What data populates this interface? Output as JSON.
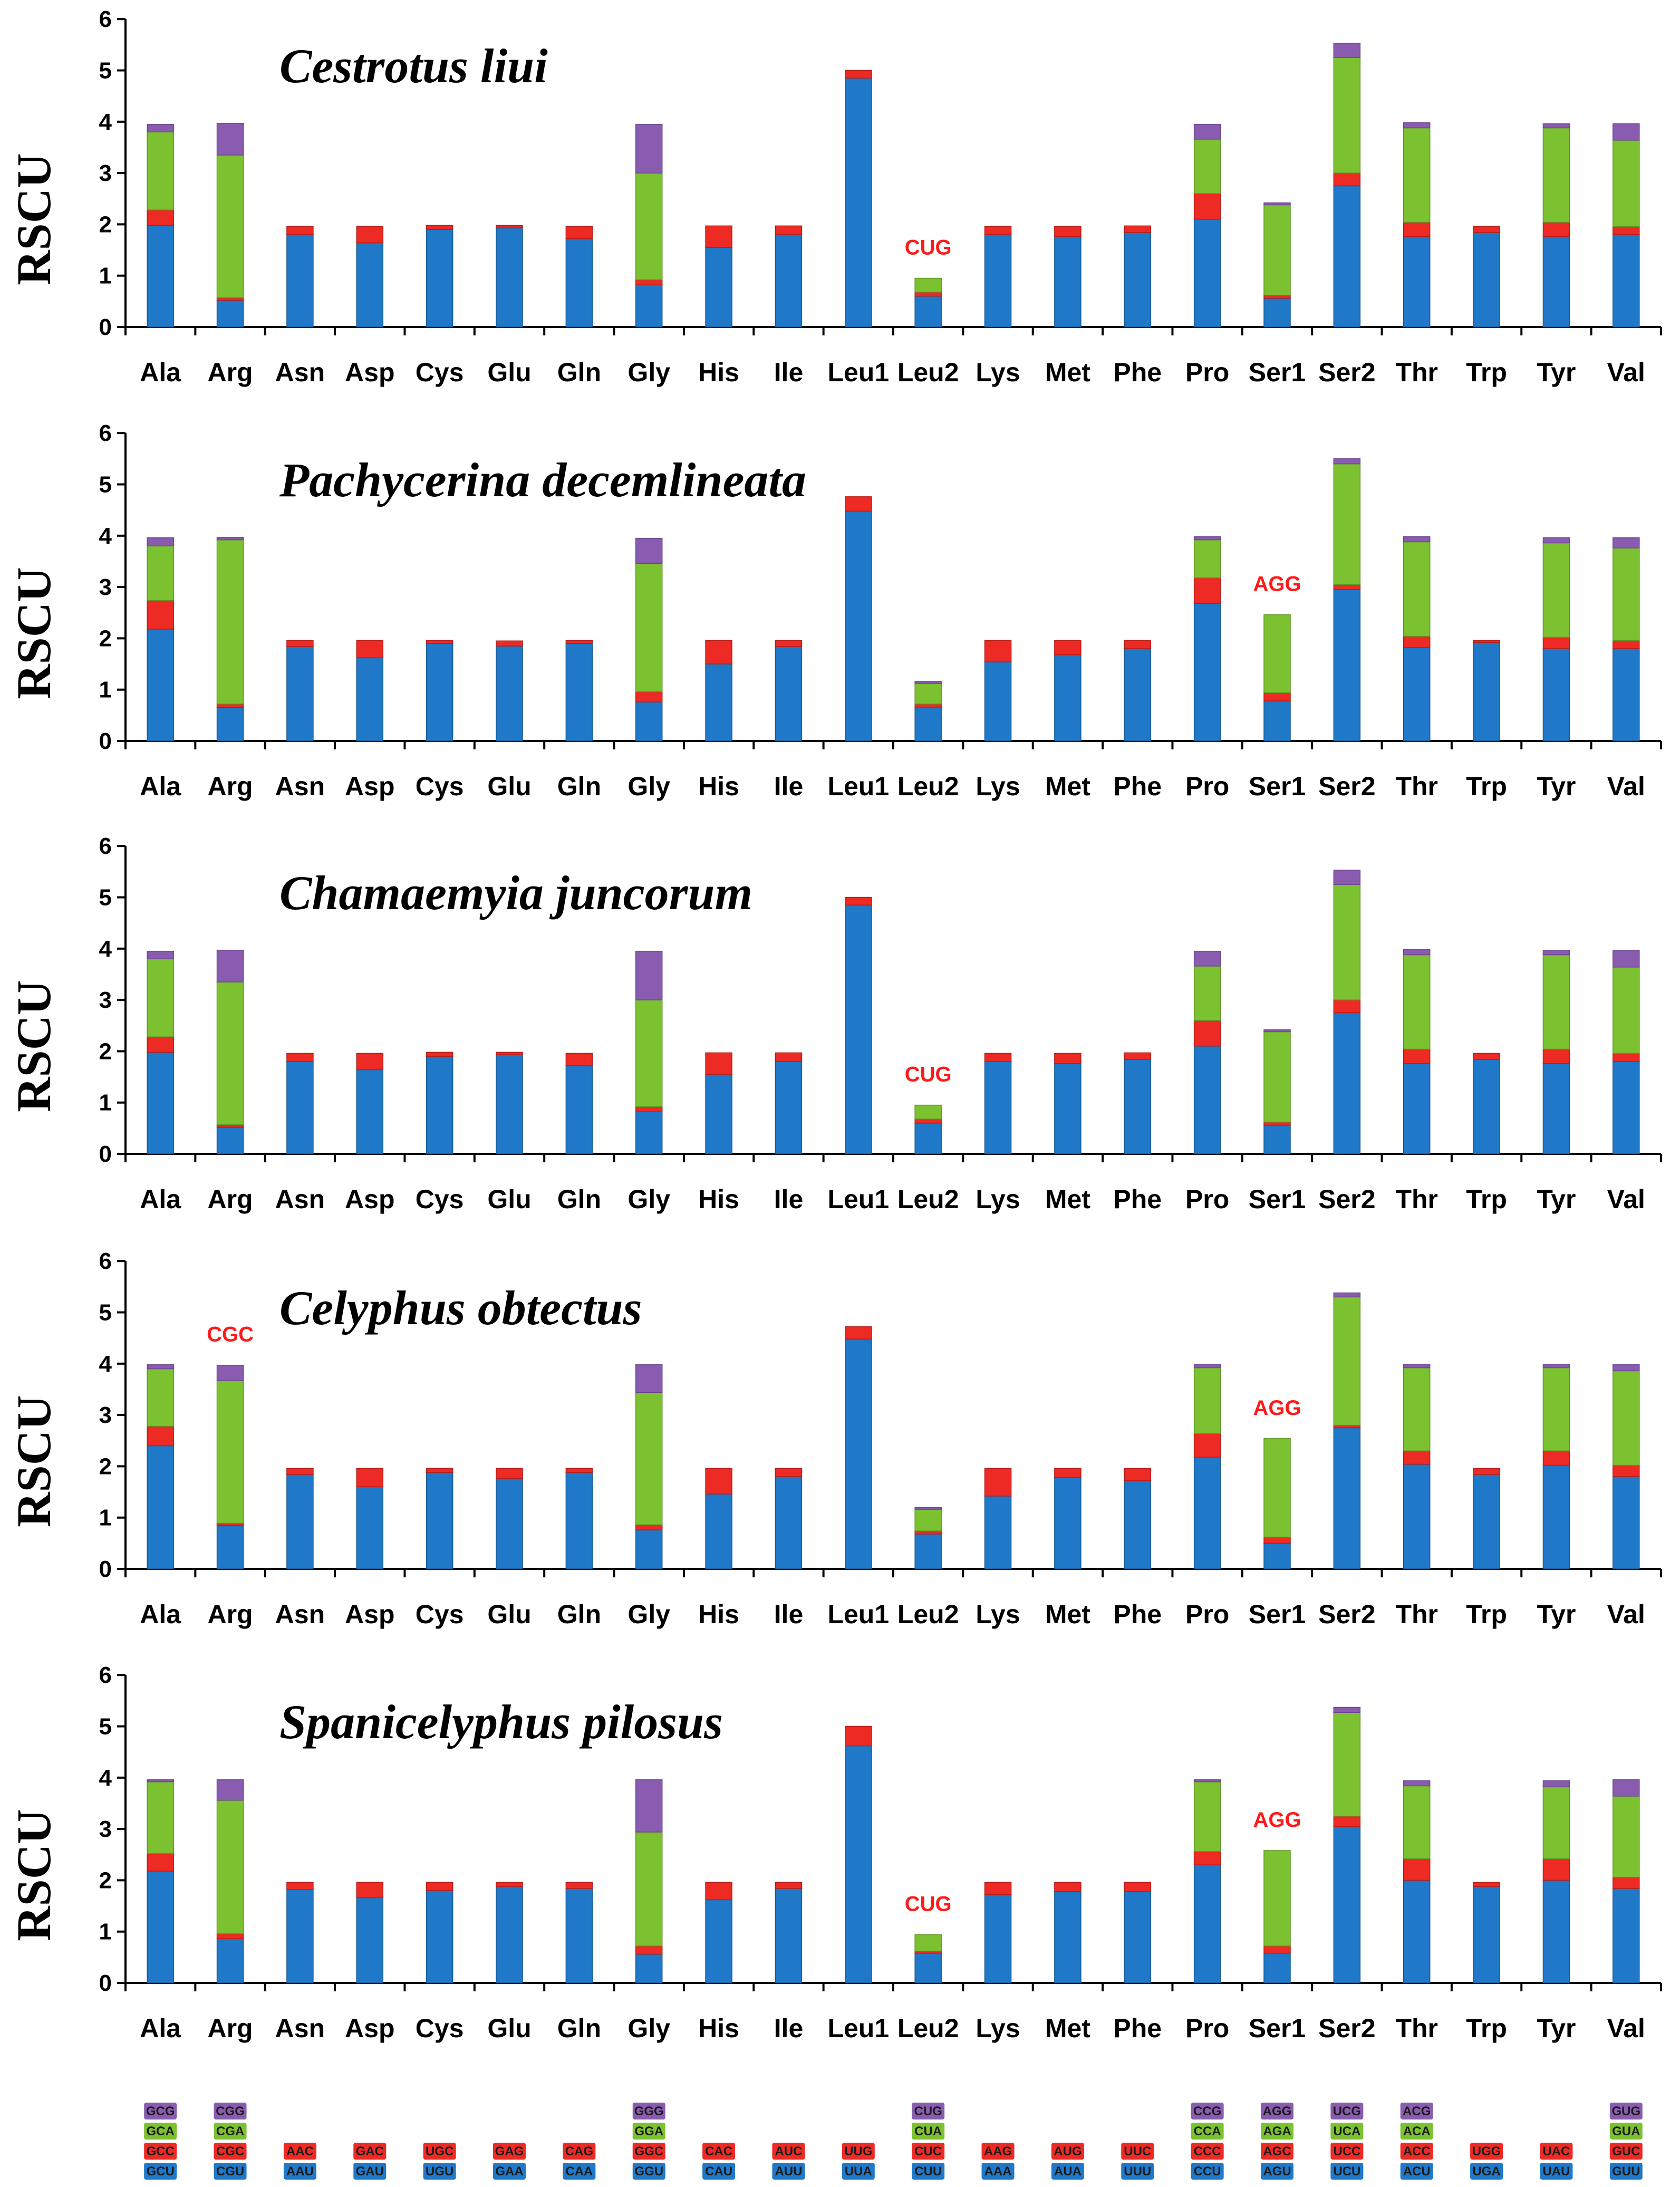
{
  "colors": {
    "stack1": "#1f78c8",
    "stack2": "#ee2a24",
    "stack3": "#7cc230",
    "stack4": "#8a5cb0",
    "annotation": "#ff1a1a"
  },
  "chart_data": [
    {
      "type": "bar",
      "stacked": true,
      "title": "Cestrotus liui",
      "ylabel": "RSCU",
      "xlabel": "",
      "ylim": [
        0,
        6
      ],
      "yticks": [
        "0",
        "1",
        "2",
        "3",
        "4",
        "5",
        "6"
      ],
      "categories": [
        "Ala",
        "Arg",
        "Asn",
        "Asp",
        "Cys",
        "Glu",
        "Gln",
        "Gly",
        "His",
        "Ile",
        "Leu1",
        "Leu2",
        "Lys",
        "Met",
        "Phe",
        "Pro",
        "Ser1",
        "Ser2",
        "Thr",
        "Trp",
        "Tyr",
        "Val"
      ],
      "stack_values": [
        [
          1.98,
          0.3,
          1.52,
          0.15
        ],
        [
          0.52,
          0.05,
          2.78,
          0.62
        ],
        [
          1.8,
          0.16
        ],
        [
          1.64,
          0.32
        ],
        [
          1.9,
          0.08
        ],
        [
          1.93,
          0.05
        ],
        [
          1.72,
          0.24
        ],
        [
          0.82,
          0.1,
          2.08,
          0.95
        ],
        [
          1.55,
          0.42
        ],
        [
          1.8,
          0.17
        ],
        [
          4.85,
          0.15
        ],
        [
          0.6,
          0.08,
          0.27
        ],
        [
          1.8,
          0.16
        ],
        [
          1.76,
          0.2
        ],
        [
          1.84,
          0.13
        ],
        [
          2.1,
          0.5,
          1.06,
          0.29
        ],
        [
          0.56,
          0.06,
          1.76,
          0.04
        ],
        [
          2.75,
          0.25,
          2.25,
          0.28
        ],
        [
          1.76,
          0.28,
          1.84,
          0.1
        ],
        [
          1.84,
          0.12
        ],
        [
          1.76,
          0.28,
          1.84,
          0.08
        ],
        [
          1.8,
          0.16,
          1.68,
          0.32
        ]
      ],
      "annotations": [
        {
          "category": "Leu2",
          "text": "CUG"
        }
      ]
    },
    {
      "type": "bar",
      "stacked": true,
      "title": "Pachycerina decemlineata",
      "ylabel": "RSCU",
      "xlabel": "",
      "ylim": [
        0,
        6
      ],
      "yticks": [
        "0",
        "1",
        "2",
        "3",
        "4",
        "5",
        "6"
      ],
      "categories": [
        "Ala",
        "Arg",
        "Asn",
        "Asp",
        "Cys",
        "Glu",
        "Gln",
        "Gly",
        "His",
        "Ile",
        "Leu1",
        "Leu2",
        "Lys",
        "Met",
        "Phe",
        "Pro",
        "Ser1",
        "Ser2",
        "Thr",
        "Trp",
        "Tyr",
        "Val"
      ],
      "stack_values": [
        [
          2.18,
          0.56,
          1.06,
          0.16
        ],
        [
          0.65,
          0.07,
          3.2,
          0.05
        ],
        [
          1.84,
          0.12
        ],
        [
          1.62,
          0.34
        ],
        [
          1.9,
          0.06
        ],
        [
          1.85,
          0.1
        ],
        [
          1.9,
          0.06
        ],
        [
          0.76,
          0.2,
          2.5,
          0.49
        ],
        [
          1.5,
          0.46
        ],
        [
          1.84,
          0.12
        ],
        [
          4.48,
          0.28
        ],
        [
          0.66,
          0.06,
          0.4,
          0.04
        ],
        [
          1.54,
          0.42
        ],
        [
          1.68,
          0.28
        ],
        [
          1.8,
          0.16
        ],
        [
          2.68,
          0.5,
          0.74,
          0.06
        ],
        [
          0.78,
          0.16,
          1.52
        ],
        [
          2.95,
          0.1,
          2.35,
          0.1
        ],
        [
          1.82,
          0.22,
          1.84,
          0.1
        ],
        [
          1.92,
          0.04
        ],
        [
          1.8,
          0.22,
          1.84,
          0.1
        ],
        [
          1.8,
          0.16,
          1.8,
          0.2
        ]
      ],
      "annotations": [
        {
          "category": "Ser1",
          "text": "AGG"
        }
      ]
    },
    {
      "type": "bar",
      "stacked": true,
      "title": "Chamaemyia juncorum",
      "ylabel": "RSCU",
      "xlabel": "",
      "ylim": [
        0,
        6
      ],
      "yticks": [
        "0",
        "1",
        "2",
        "3",
        "4",
        "5",
        "6"
      ],
      "categories": [
        "Ala",
        "Arg",
        "Asn",
        "Asp",
        "Cys",
        "Glu",
        "Gln",
        "Gly",
        "His",
        "Ile",
        "Leu1",
        "Leu2",
        "Lys",
        "Met",
        "Phe",
        "Pro",
        "Ser1",
        "Ser2",
        "Thr",
        "Trp",
        "Tyr",
        "Val"
      ],
      "stack_values": [
        [
          1.98,
          0.3,
          1.52,
          0.15
        ],
        [
          0.52,
          0.05,
          2.78,
          0.62
        ],
        [
          1.8,
          0.16
        ],
        [
          1.64,
          0.32
        ],
        [
          1.9,
          0.08
        ],
        [
          1.93,
          0.05
        ],
        [
          1.72,
          0.24
        ],
        [
          0.82,
          0.1,
          2.08,
          0.95
        ],
        [
          1.55,
          0.42
        ],
        [
          1.8,
          0.17
        ],
        [
          4.85,
          0.15
        ],
        [
          0.6,
          0.08,
          0.27
        ],
        [
          1.8,
          0.16
        ],
        [
          1.76,
          0.2
        ],
        [
          1.84,
          0.13
        ],
        [
          2.1,
          0.5,
          1.06,
          0.29
        ],
        [
          0.56,
          0.06,
          1.76,
          0.04
        ],
        [
          2.75,
          0.25,
          2.25,
          0.28
        ],
        [
          1.76,
          0.28,
          1.84,
          0.1
        ],
        [
          1.84,
          0.12
        ],
        [
          1.76,
          0.28,
          1.84,
          0.08
        ],
        [
          1.8,
          0.16,
          1.68,
          0.32
        ]
      ],
      "annotations": [
        {
          "category": "Leu2",
          "text": "CUG"
        }
      ]
    },
    {
      "type": "bar",
      "stacked": true,
      "title": "Celyphus obtectus",
      "ylabel": "RSCU",
      "xlabel": "",
      "ylim": [
        0,
        6
      ],
      "yticks": [
        "0",
        "1",
        "2",
        "3",
        "4",
        "5",
        "6"
      ],
      "categories": [
        "Ala",
        "Arg",
        "Asn",
        "Asp",
        "Cys",
        "Glu",
        "Gln",
        "Gly",
        "His",
        "Ile",
        "Leu1",
        "Leu2",
        "Lys",
        "Met",
        "Phe",
        "Pro",
        "Ser1",
        "Ser2",
        "Thr",
        "Trp",
        "Tyr",
        "Val"
      ],
      "stack_values": [
        [
          2.4,
          0.38,
          1.12,
          0.08
        ],
        [
          0.85,
          0.04,
          2.78,
          0.3
        ],
        [
          1.84,
          0.12
        ],
        [
          1.6,
          0.36
        ],
        [
          1.88,
          0.08
        ],
        [
          1.76,
          0.2
        ],
        [
          1.88,
          0.08
        ],
        [
          0.76,
          0.1,
          2.58,
          0.54
        ],
        [
          1.46,
          0.5
        ],
        [
          1.8,
          0.16
        ],
        [
          4.48,
          0.24
        ],
        [
          0.68,
          0.06,
          0.42,
          0.04
        ],
        [
          1.42,
          0.54
        ],
        [
          1.78,
          0.18
        ],
        [
          1.72,
          0.24
        ],
        [
          2.18,
          0.46,
          1.28,
          0.06
        ],
        [
          0.5,
          0.12,
          1.92
        ],
        [
          2.75,
          0.05,
          2.5,
          0.08
        ],
        [
          2.04,
          0.26,
          1.62,
          0.06
        ],
        [
          1.84,
          0.12
        ],
        [
          2.02,
          0.28,
          1.62,
          0.06
        ],
        [
          1.8,
          0.22,
          1.84,
          0.12
        ]
      ],
      "annotations": [
        {
          "category": "Arg",
          "text": "CGC"
        },
        {
          "category": "Ser1",
          "text": "AGG"
        }
      ]
    },
    {
      "type": "bar",
      "stacked": true,
      "title": "Spanicelyphus pilosus",
      "ylabel": "RSCU",
      "xlabel": "",
      "ylim": [
        0,
        6
      ],
      "yticks": [
        "0",
        "1",
        "2",
        "3",
        "4",
        "5",
        "6"
      ],
      "categories": [
        "Ala",
        "Arg",
        "Asn",
        "Asp",
        "Cys",
        "Glu",
        "Gln",
        "Gly",
        "His",
        "Ile",
        "Leu1",
        "Leu2",
        "Lys",
        "Met",
        "Phe",
        "Pro",
        "Ser1",
        "Ser2",
        "Thr",
        "Trp",
        "Tyr",
        "Val"
      ],
      "stack_values": [
        [
          2.18,
          0.34,
          1.4,
          0.04
        ],
        [
          0.86,
          0.1,
          2.6,
          0.4
        ],
        [
          1.82,
          0.14
        ],
        [
          1.66,
          0.3
        ],
        [
          1.8,
          0.16
        ],
        [
          1.88,
          0.08
        ],
        [
          1.84,
          0.12
        ],
        [
          0.56,
          0.16,
          2.22,
          1.02
        ],
        [
          1.62,
          0.34
        ],
        [
          1.84,
          0.12
        ],
        [
          4.62,
          0.38
        ],
        [
          0.58,
          0.04,
          0.32
        ],
        [
          1.72,
          0.24
        ],
        [
          1.78,
          0.18
        ],
        [
          1.78,
          0.18
        ],
        [
          2.3,
          0.26,
          1.36,
          0.04
        ],
        [
          0.58,
          0.14,
          1.86
        ],
        [
          3.05,
          0.2,
          2.02,
          0.1
        ],
        [
          2.0,
          0.42,
          1.42,
          0.1
        ],
        [
          1.88,
          0.08
        ],
        [
          2.0,
          0.42,
          1.4,
          0.12
        ],
        [
          1.84,
          0.22,
          1.58,
          0.32
        ]
      ],
      "annotations": [
        {
          "category": "Leu2",
          "text": "CUG"
        },
        {
          "category": "Ser1",
          "text": "AGG"
        }
      ]
    }
  ],
  "codon_legend": [
    [
      "GCU",
      "GCC",
      "GCA",
      "GCG"
    ],
    [
      "CGU",
      "CGC",
      "CGA",
      "CGG"
    ],
    [
      "AAU",
      "AAC"
    ],
    [
      "GAU",
      "GAC"
    ],
    [
      "UGU",
      "UGC"
    ],
    [
      "GAA",
      "GAG"
    ],
    [
      "CAA",
      "CAG"
    ],
    [
      "GGU",
      "GGC",
      "GGA",
      "GGG"
    ],
    [
      "CAU",
      "CAC"
    ],
    [
      "AUU",
      "AUC"
    ],
    [
      "UUA",
      "UUG"
    ],
    [
      "CUU",
      "CUC",
      "CUA",
      "CUG"
    ],
    [
      "AAA",
      "AAG"
    ],
    [
      "AUA",
      "AUG"
    ],
    [
      "UUU",
      "UUC"
    ],
    [
      "CCU",
      "CCC",
      "CCA",
      "CCG"
    ],
    [
      "AGU",
      "AGC",
      "AGA",
      "AGG"
    ],
    [
      "UCU",
      "UCC",
      "UCA",
      "UCG"
    ],
    [
      "ACU",
      "ACC",
      "ACA",
      "ACG"
    ],
    [
      "UGA",
      "UGG"
    ],
    [
      "UAU",
      "UAC"
    ],
    [
      "GUU",
      "GUC",
      "GUA",
      "GUG"
    ]
  ]
}
